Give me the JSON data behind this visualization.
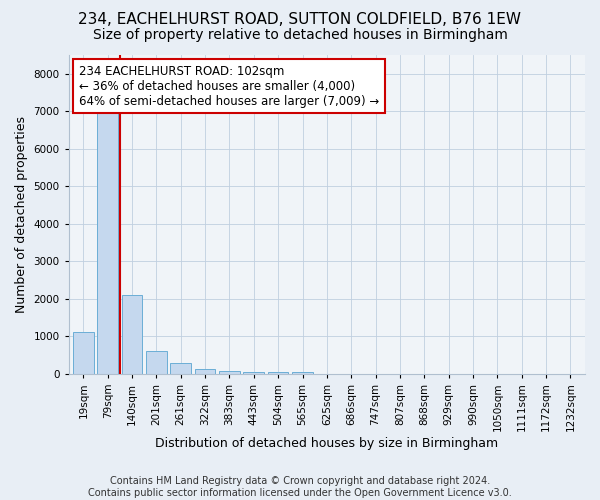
{
  "title": "234, EACHELHURST ROAD, SUTTON COLDFIELD, B76 1EW",
  "subtitle": "Size of property relative to detached houses in Birmingham",
  "xlabel": "Distribution of detached houses by size in Birmingham",
  "ylabel": "Number of detached properties",
  "footnote1": "Contains HM Land Registry data © Crown copyright and database right 2024.",
  "footnote2": "Contains public sector information licensed under the Open Government Licence v3.0.",
  "categories": [
    "19sqm",
    "79sqm",
    "140sqm",
    "201sqm",
    "261sqm",
    "322sqm",
    "383sqm",
    "443sqm",
    "504sqm",
    "565sqm",
    "625sqm",
    "686sqm",
    "747sqm",
    "807sqm",
    "868sqm",
    "929sqm",
    "990sqm",
    "1050sqm",
    "1111sqm",
    "1172sqm",
    "1232sqm"
  ],
  "values": [
    1100,
    7200,
    2100,
    600,
    280,
    130,
    80,
    50,
    50,
    50,
    0,
    0,
    0,
    0,
    0,
    0,
    0,
    0,
    0,
    0,
    0
  ],
  "bar_color": "#c5d8ee",
  "bar_edge_color": "#6baed6",
  "vline_x_index": 1.5,
  "vline_color": "#cc0000",
  "annotation_text": "234 EACHELHURST ROAD: 102sqm\n← 36% of detached houses are smaller (4,000)\n64% of semi-detached houses are larger (7,009) →",
  "annotation_box_facecolor": "#ffffff",
  "annotation_box_edgecolor": "#cc0000",
  "ylim": [
    0,
    8500
  ],
  "yticks": [
    0,
    1000,
    2000,
    3000,
    4000,
    5000,
    6000,
    7000,
    8000
  ],
  "bg_color": "#e8eef5",
  "plot_bg_color": "#f0f4f8",
  "title_fontsize": 11,
  "subtitle_fontsize": 10,
  "axis_label_fontsize": 9,
  "tick_fontsize": 7.5,
  "annotation_fontsize": 8.5,
  "footnote_fontsize": 7
}
